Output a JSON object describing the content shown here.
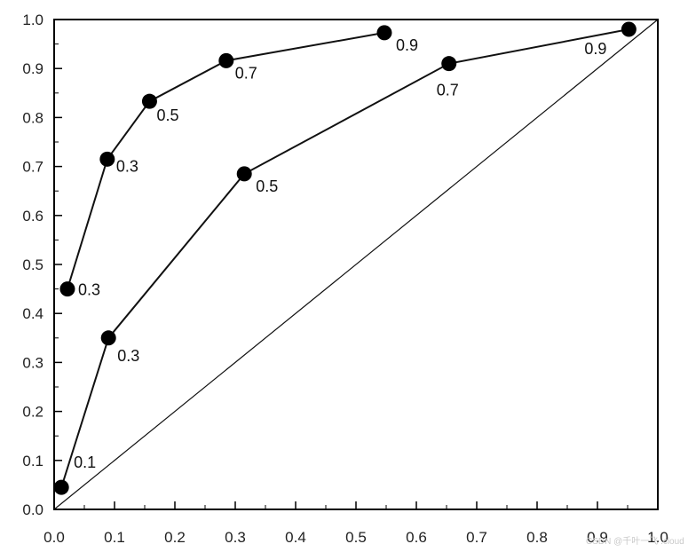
{
  "chart_data": {
    "type": "line",
    "xlim": [
      0.0,
      1.0
    ],
    "ylim": [
      0.0,
      1.0
    ],
    "x_ticks": [
      "0.0",
      "0.1",
      "0.2",
      "0.3",
      "0.4",
      "0.5",
      "0.6",
      "0.7",
      "0.8",
      "0.9",
      "1.0"
    ],
    "y_ticks": [
      "0.0",
      "0.1",
      "0.2",
      "0.3",
      "0.4",
      "0.5",
      "0.6",
      "0.7",
      "0.8",
      "0.9",
      "1.0"
    ],
    "grid": false,
    "legend": "none",
    "series": [
      {
        "x": [
          0.022,
          0.088,
          0.158,
          0.285,
          0.547
        ],
        "y": [
          0.45,
          0.715,
          0.833,
          0.916,
          0.973
        ],
        "labels": [
          "0.3",
          "0.3",
          "0.5",
          "0.7",
          "0.9"
        ]
      },
      {
        "x": [
          0.012,
          0.09,
          0.315,
          0.654,
          0.952
        ],
        "y": [
          0.045,
          0.35,
          0.685,
          0.91,
          0.98
        ],
        "labels": [
          "0.1",
          "0.3",
          "0.5",
          "0.7",
          "0.9"
        ]
      }
    ],
    "reference_line": {
      "x": [
        0.0,
        1.0
      ],
      "y": [
        0.0,
        1.0
      ]
    },
    "colors": {
      "line": "#111111",
      "marker": "#000000",
      "axis": "#000000"
    }
  },
  "watermark": "CSDN @千叶一飞 .cloud"
}
